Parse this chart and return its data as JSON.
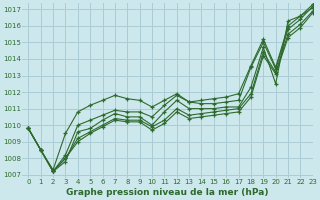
{
  "background_color": "#cce8ec",
  "grid_color": "#aaccd4",
  "line_color": "#2d6a2d",
  "marker_color": "#2d6a2d",
  "xlabel": "Graphe pression niveau de la mer (hPa)",
  "ylim": [
    1006.8,
    1017.4
  ],
  "xlim": [
    -0.5,
    23
  ],
  "yticks": [
    1007,
    1008,
    1009,
    1010,
    1011,
    1012,
    1013,
    1014,
    1015,
    1016,
    1017
  ],
  "xticks": [
    0,
    1,
    2,
    3,
    4,
    5,
    6,
    7,
    8,
    9,
    10,
    11,
    12,
    13,
    14,
    15,
    16,
    17,
    18,
    19,
    20,
    21,
    22,
    23
  ],
  "series": [
    [
      1009.8,
      1008.5,
      1007.2,
      1007.8,
      1009.6,
      1009.8,
      1010.3,
      1010.7,
      1010.5,
      1010.5,
      1010.0,
      1010.8,
      1011.5,
      1011.0,
      1011.0,
      1011.0,
      1011.1,
      1011.1,
      1012.3,
      1014.7,
      1012.5,
      1016.3,
      1016.6,
      1017.1
    ],
    [
      1009.8,
      1008.5,
      1007.2,
      1008.0,
      1009.2,
      1009.6,
      1010.0,
      1010.4,
      1010.3,
      1010.3,
      1009.9,
      1010.3,
      1011.0,
      1010.6,
      1010.7,
      1010.8,
      1010.9,
      1011.0,
      1011.9,
      1014.4,
      1013.2,
      1015.5,
      1016.1,
      1016.9
    ],
    [
      1009.8,
      1008.5,
      1007.2,
      1008.0,
      1009.0,
      1009.5,
      1009.9,
      1010.3,
      1010.2,
      1010.2,
      1009.7,
      1010.1,
      1010.8,
      1010.4,
      1010.5,
      1010.6,
      1010.7,
      1010.8,
      1011.7,
      1014.2,
      1013.1,
      1015.3,
      1015.9,
      1016.8
    ],
    [
      1009.8,
      1008.5,
      1007.2,
      1008.2,
      1010.0,
      1010.3,
      1010.6,
      1010.9,
      1010.8,
      1010.8,
      1010.5,
      1011.2,
      1011.8,
      1011.4,
      1011.3,
      1011.3,
      1011.4,
      1011.5,
      1013.5,
      1015.0,
      1013.4,
      1015.8,
      1016.4,
      1017.2
    ],
    [
      1009.8,
      1008.5,
      1007.3,
      1009.5,
      1010.8,
      1011.2,
      1011.5,
      1011.8,
      1011.6,
      1011.5,
      1011.1,
      1011.5,
      1011.9,
      1011.4,
      1011.5,
      1011.6,
      1011.7,
      1011.9,
      1013.6,
      1015.2,
      1013.5,
      1016.0,
      1016.6,
      1017.3
    ]
  ]
}
